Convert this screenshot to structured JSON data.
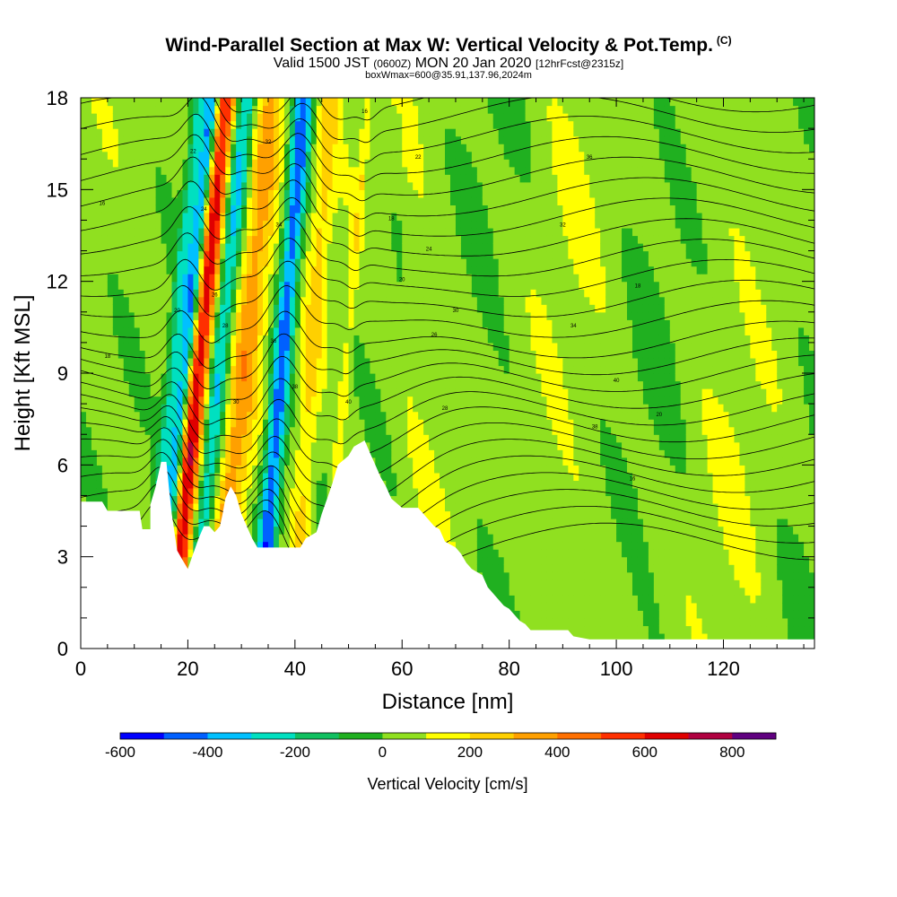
{
  "title": {
    "main": "Wind-Parallel Section at Max W: Vertical Velocity & Pot.Temp.",
    "copyright": "(C)",
    "valid_prefix": "Valid 1500 JST",
    "valid_zulu": "(0600Z)",
    "valid_date": "MON 20 Jan 2020",
    "forecast": "[12hrFcst@2315z]",
    "box_info": "boxWmax=600@35.91,137.96,2024m"
  },
  "chart_data": {
    "type": "heatmap",
    "xlabel": "Distance [nm]",
    "ylabel": "Height [Kft MSL]",
    "xlim": [
      0,
      137
    ],
    "ylim": [
      0,
      18
    ],
    "x_ticks": [
      0,
      20,
      40,
      60,
      80,
      100,
      120
    ],
    "y_ticks": [
      0,
      3,
      6,
      9,
      12,
      15,
      18
    ],
    "colorbar": {
      "label": "Vertical Velocity [cm/s]",
      "tick_labels": [
        -600,
        -400,
        -200,
        0,
        200,
        400,
        600,
        800
      ],
      "bounds": [
        -600,
        900
      ],
      "step": 100,
      "colors": [
        "#0000ff",
        "#0060ff",
        "#00c0ff",
        "#00e0c0",
        "#10c060",
        "#20b020",
        "#90e020",
        "#ffff00",
        "#ffd000",
        "#ffa000",
        "#ff7000",
        "#ff3000",
        "#e00000",
        "#b00040",
        "#600080"
      ]
    },
    "terrain_kft": [
      [
        0,
        4.8
      ],
      [
        4,
        4.8
      ],
      [
        5,
        4.5
      ],
      [
        11,
        4.5
      ],
      [
        11.5,
        3.9
      ],
      [
        13,
        3.9
      ],
      [
        13,
        4.7
      ],
      [
        14,
        5.3
      ],
      [
        15,
        6.1
      ],
      [
        16,
        6.1
      ],
      [
        16.5,
        5.2
      ],
      [
        17,
        4.4
      ],
      [
        18,
        3.2
      ],
      [
        19,
        2.9
      ],
      [
        20,
        2.6
      ],
      [
        21,
        3.1
      ],
      [
        22,
        3.6
      ],
      [
        23,
        4.0
      ],
      [
        24,
        4.0
      ],
      [
        25,
        3.8
      ],
      [
        26,
        4.0
      ],
      [
        26.5,
        4.4
      ],
      [
        27,
        4.9
      ],
      [
        28,
        5.3
      ],
      [
        29,
        5.0
      ],
      [
        30,
        4.4
      ],
      [
        31,
        4.0
      ],
      [
        32,
        3.6
      ],
      [
        33,
        3.3
      ],
      [
        41,
        3.3
      ],
      [
        42,
        3.6
      ],
      [
        44,
        3.8
      ],
      [
        45,
        4.4
      ],
      [
        46,
        4.9
      ],
      [
        47,
        5.4
      ],
      [
        48,
        6.0
      ],
      [
        50,
        6.3
      ],
      [
        51,
        6.6
      ],
      [
        53,
        6.8
      ],
      [
        54,
        6.4
      ],
      [
        55,
        6.0
      ],
      [
        56,
        5.6
      ],
      [
        57,
        5.3
      ],
      [
        58,
        4.9
      ],
      [
        60,
        4.6
      ],
      [
        63,
        4.6
      ],
      [
        64,
        4.4
      ],
      [
        65,
        4.2
      ],
      [
        66,
        4.0
      ],
      [
        67,
        3.9
      ],
      [
        68,
        3.5
      ],
      [
        70,
        3.3
      ],
      [
        71,
        3.1
      ],
      [
        72,
        2.8
      ],
      [
        73,
        2.6
      ],
      [
        74,
        2.5
      ],
      [
        75,
        2.4
      ],
      [
        76,
        2.0
      ],
      [
        77,
        1.8
      ],
      [
        78,
        1.6
      ],
      [
        79,
        1.4
      ],
      [
        80,
        1.3
      ],
      [
        81,
        1.1
      ],
      [
        82,
        0.9
      ],
      [
        83,
        0.8
      ],
      [
        84,
        0.6
      ],
      [
        91,
        0.6
      ],
      [
        92,
        0.4
      ],
      [
        95,
        0.3
      ],
      [
        137,
        0.3
      ]
    ],
    "vertical_velocity_cm_s": [
      {
        "x": 16.5,
        "w": 1.5,
        "tilt_kft_per_kft": 0.36,
        "value": -550
      },
      {
        "x": 19.0,
        "w": 2.2,
        "tilt_kft_per_kft": 0.36,
        "value": 650
      },
      {
        "x": 22.8,
        "w": 2.0,
        "tilt_kft_per_kft": 0.36,
        "value": -380
      },
      {
        "x": 27.5,
        "w": 2.8,
        "tilt_kft_per_kft": 0.36,
        "value": 300
      },
      {
        "x": 35.0,
        "w": 1.8,
        "tilt_kft_per_kft": 0.3,
        "value": -520
      },
      {
        "x": 41.0,
        "w": 1.8,
        "tilt_kft_per_kft": 0.25,
        "value": 180
      },
      {
        "x": 14.0,
        "w": 1.2,
        "tilt_kft_per_kft": 0.36,
        "value": -230
      },
      {
        "x": 47.0,
        "w": 0.8,
        "tilt_kft_per_kft": 0.3,
        "value": 130
      }
    ],
    "contour_labels": [
      "16",
      "18",
      "20",
      "22",
      "24",
      "26",
      "28",
      "30",
      "32",
      "34",
      "36",
      "38",
      "40"
    ]
  }
}
